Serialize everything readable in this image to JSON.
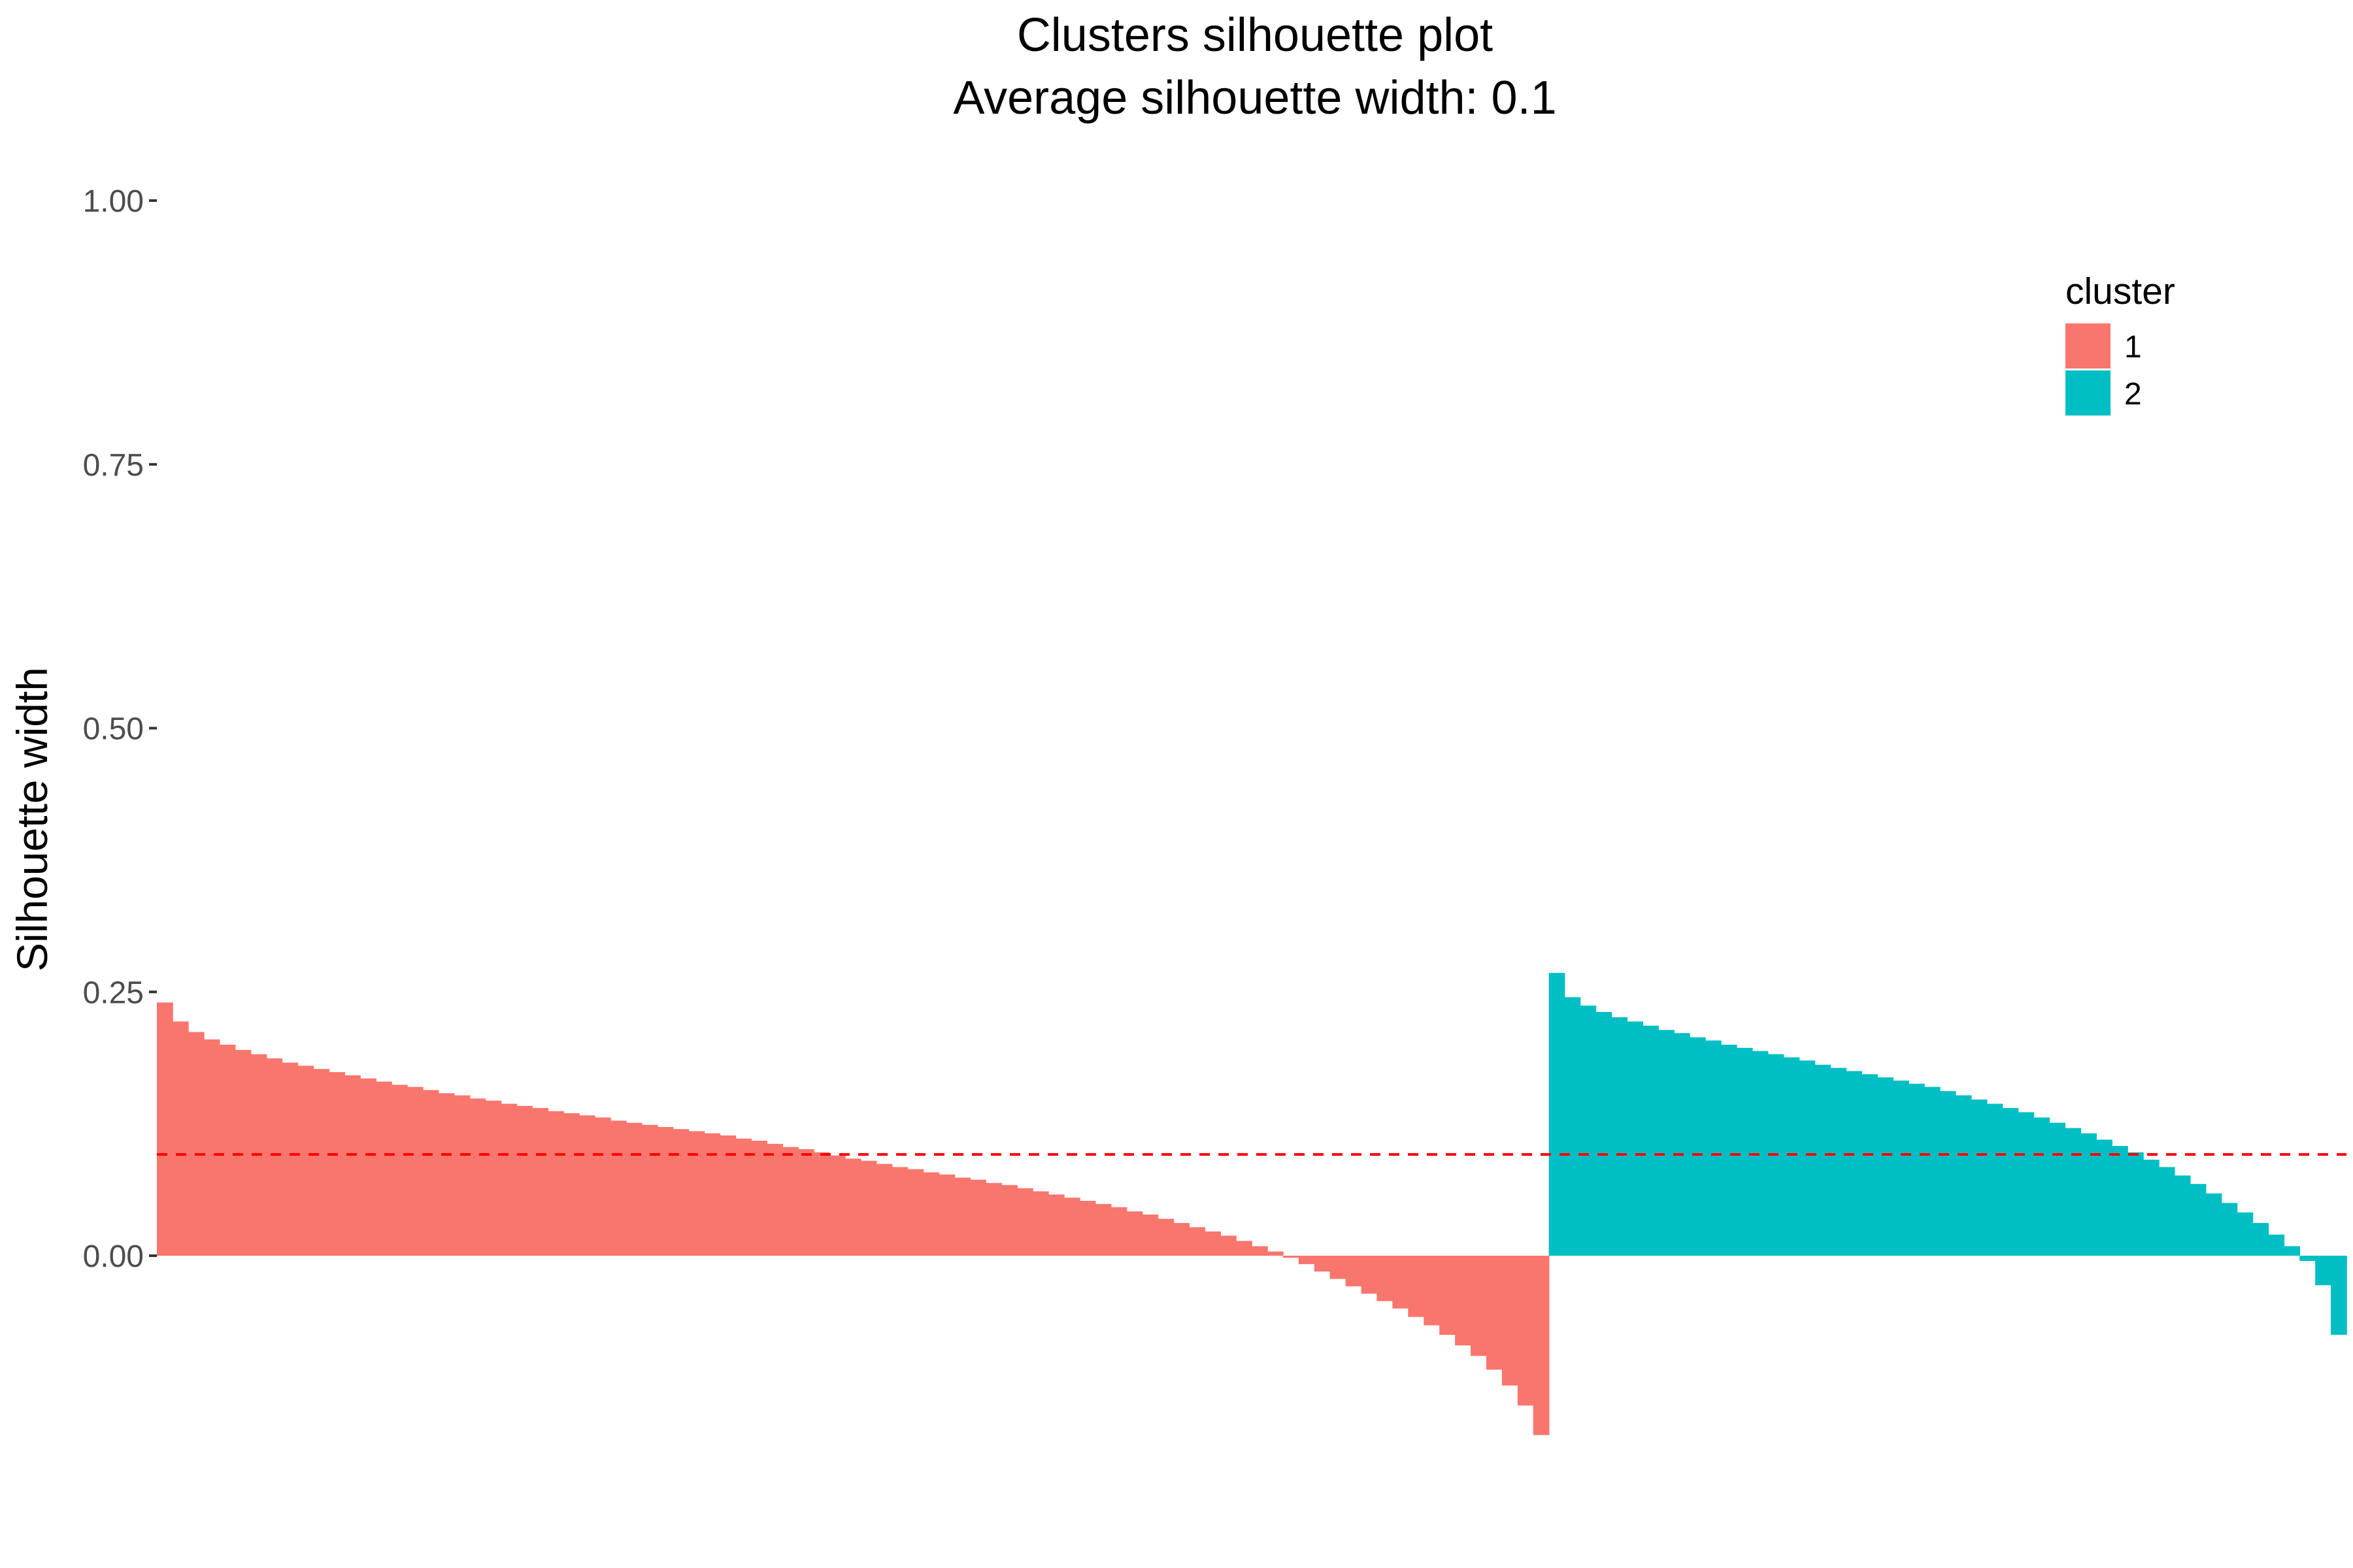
{
  "chart_data": {
    "type": "bar",
    "title": "Clusters silhouette plot",
    "subtitle": "Average silhouette width: 0.1",
    "xlabel": "",
    "ylabel": "Silhouette width",
    "ylim": [
      -0.25,
      1.0
    ],
    "yticks": [
      {
        "value": 0.0,
        "label": "0.00"
      },
      {
        "value": 0.25,
        "label": "0.25"
      },
      {
        "value": 0.5,
        "label": "0.50"
      },
      {
        "value": 0.75,
        "label": "0.75"
      },
      {
        "value": 1.0,
        "label": "1.00"
      }
    ],
    "grid": false,
    "legend": {
      "title": "cluster",
      "position": "top-right"
    },
    "average_line": {
      "value": 0.096,
      "color": "#FF0000",
      "style": "dashed"
    },
    "series": [
      {
        "name": "1",
        "color": "#F8766D",
        "values": [
          0.24,
          0.222,
          0.212,
          0.205,
          0.2,
          0.195,
          0.191,
          0.187,
          0.183,
          0.18,
          0.177,
          0.174,
          0.171,
          0.168,
          0.165,
          0.162,
          0.16,
          0.157,
          0.154,
          0.152,
          0.149,
          0.147,
          0.144,
          0.142,
          0.14,
          0.137,
          0.135,
          0.133,
          0.131,
          0.128,
          0.126,
          0.124,
          0.122,
          0.12,
          0.118,
          0.116,
          0.114,
          0.111,
          0.109,
          0.106,
          0.103,
          0.101,
          0.098,
          0.095,
          0.092,
          0.09,
          0.087,
          0.084,
          0.082,
          0.079,
          0.077,
          0.074,
          0.072,
          0.069,
          0.067,
          0.064,
          0.061,
          0.058,
          0.055,
          0.052,
          0.049,
          0.046,
          0.042,
          0.039,
          0.035,
          0.031,
          0.027,
          0.023,
          0.019,
          0.014,
          0.009,
          0.004,
          -0.002,
          -0.008,
          -0.015,
          -0.022,
          -0.029,
          -0.036,
          -0.043,
          -0.05,
          -0.058,
          -0.066,
          -0.075,
          -0.085,
          -0.095,
          -0.108,
          -0.123,
          -0.142,
          -0.17
        ]
      },
      {
        "name": "2",
        "color": "#00BFC4",
        "values": [
          0.268,
          0.245,
          0.237,
          0.231,
          0.226,
          0.222,
          0.218,
          0.214,
          0.211,
          0.207,
          0.204,
          0.2,
          0.197,
          0.194,
          0.191,
          0.188,
          0.185,
          0.181,
          0.178,
          0.175,
          0.172,
          0.169,
          0.166,
          0.163,
          0.16,
          0.156,
          0.152,
          0.148,
          0.144,
          0.14,
          0.136,
          0.131,
          0.126,
          0.121,
          0.116,
          0.11,
          0.104,
          0.098,
          0.091,
          0.084,
          0.076,
          0.068,
          0.059,
          0.05,
          0.041,
          0.031,
          0.02,
          0.009,
          -0.005,
          -0.028,
          -0.075
        ]
      }
    ]
  }
}
